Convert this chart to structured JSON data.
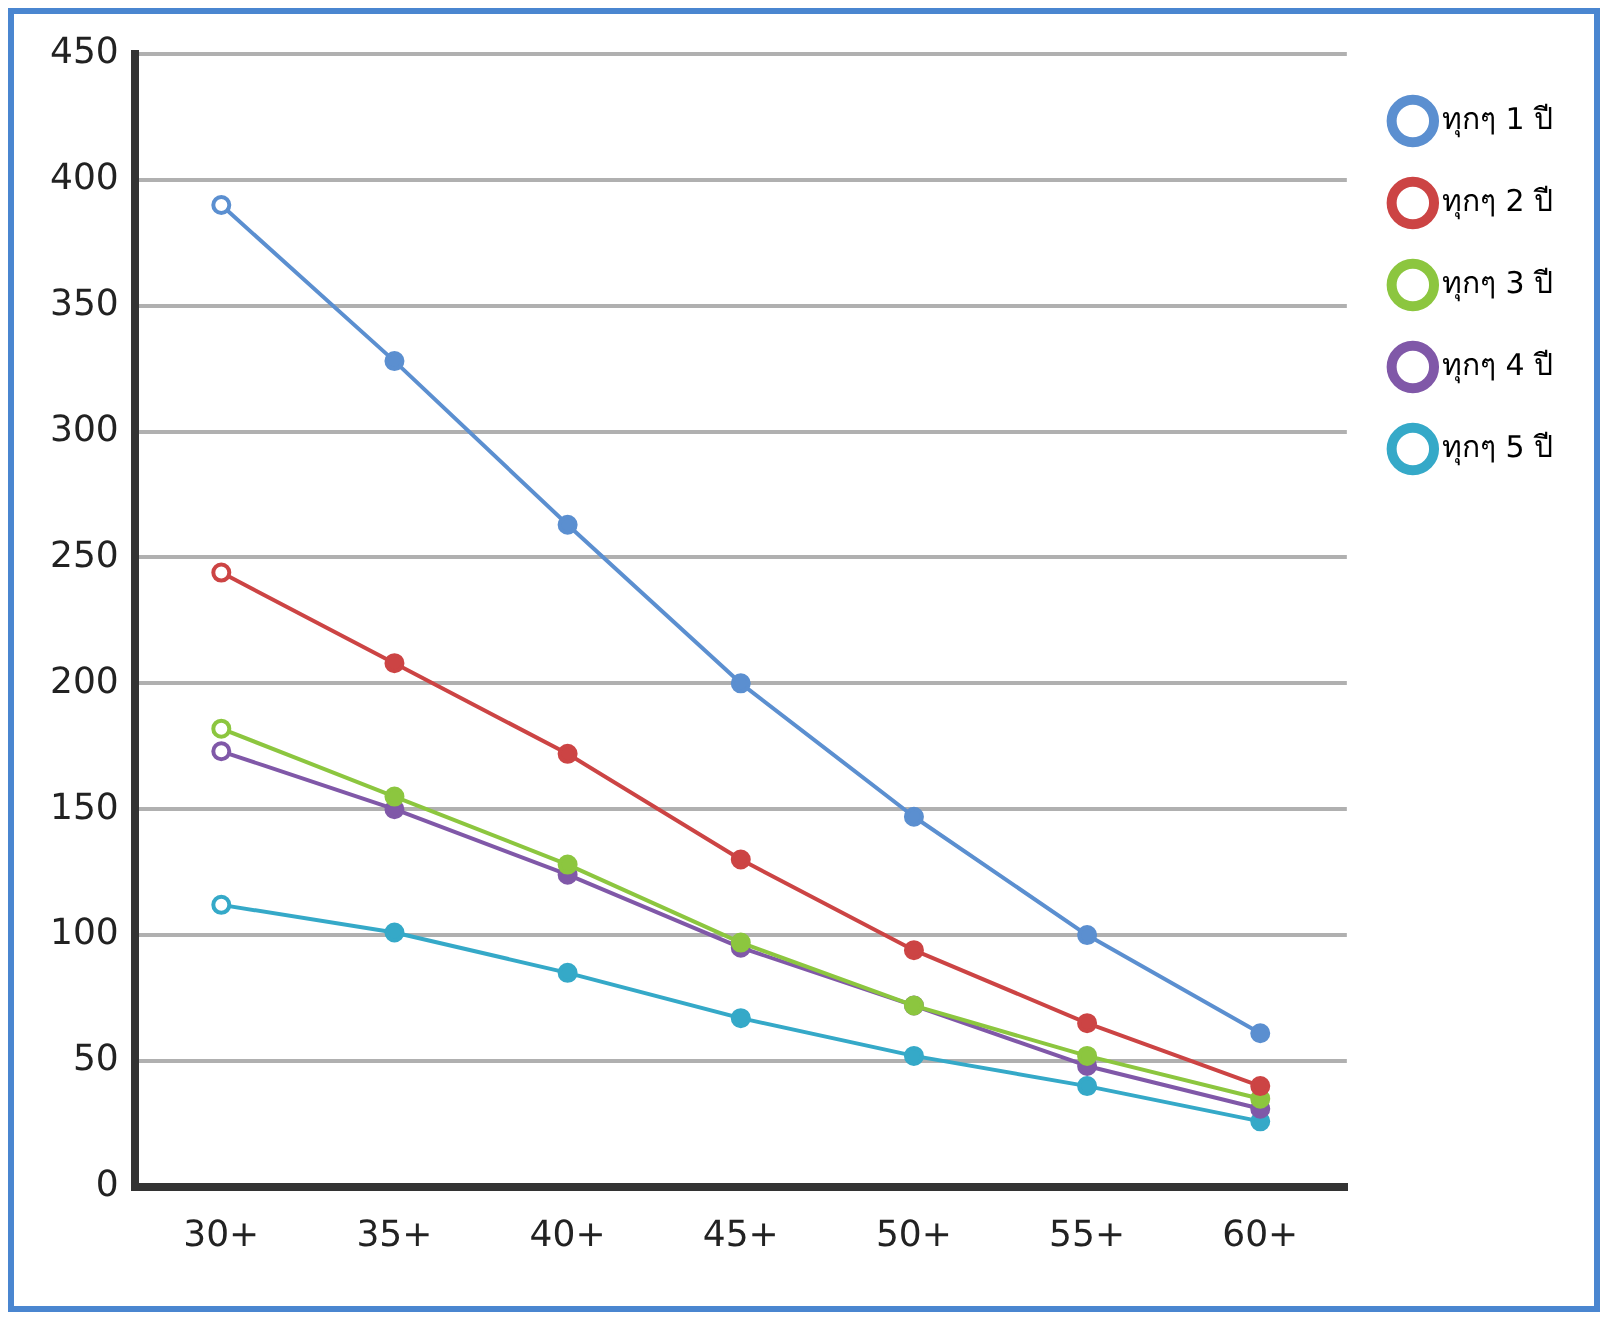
{
  "chart_data": {
    "type": "line",
    "categories": [
      "30+",
      "35+",
      "40+",
      "45+",
      "50+",
      "55+",
      "60+"
    ],
    "series": [
      {
        "name": "ทุกๆ 1 ปี",
        "color": "#5b8fd0",
        "values": [
          390,
          328,
          263,
          200,
          147,
          100,
          61
        ]
      },
      {
        "name": "ทุกๆ 2 ปี",
        "color": "#cc4444",
        "values": [
          244,
          208,
          172,
          130,
          94,
          65,
          40
        ]
      },
      {
        "name": "ทุกๆ 3 ปี",
        "color": "#8cc63f",
        "values": [
          182,
          155,
          128,
          97,
          72,
          52,
          35
        ]
      },
      {
        "name": "ทุกๆ 4 ปี",
        "color": "#8058a8",
        "values": [
          173,
          150,
          124,
          95,
          72,
          48,
          31
        ]
      },
      {
        "name": "ทุกๆ 5 ปี",
        "color": "#35a9c8",
        "values": [
          112,
          101,
          85,
          67,
          52,
          40,
          26
        ]
      }
    ],
    "ylim": [
      0,
      450
    ],
    "yticks": [
      0,
      50,
      100,
      150,
      200,
      250,
      300,
      350,
      400,
      450
    ],
    "grid": "y",
    "legend": "top right",
    "marker": "circle",
    "line_style": "solid"
  }
}
